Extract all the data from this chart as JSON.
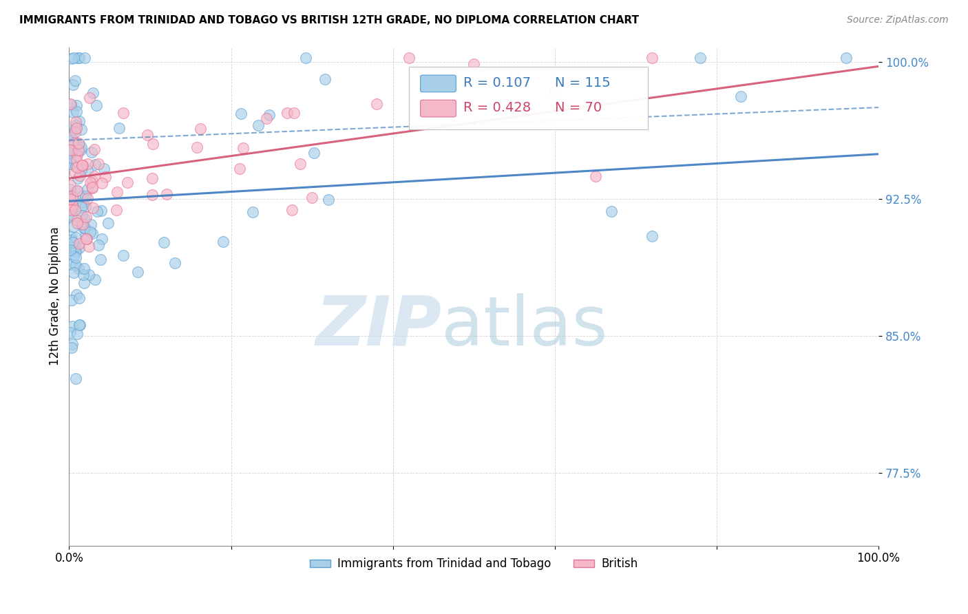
{
  "title": "IMMIGRANTS FROM TRINIDAD AND TOBAGO VS BRITISH 12TH GRADE, NO DIPLOMA CORRELATION CHART",
  "source": "Source: ZipAtlas.com",
  "ylabel": "12th Grade, No Diploma",
  "xlim": [
    0.0,
    1.0
  ],
  "ylim": [
    0.735,
    1.008
  ],
  "yticks": [
    0.775,
    0.85,
    0.925,
    1.0
  ],
  "ytick_labels": [
    "77.5%",
    "85.0%",
    "92.5%",
    "100.0%"
  ],
  "xticks": [
    0.0,
    0.2,
    0.4,
    0.6,
    0.8,
    1.0
  ],
  "xtick_labels": [
    "0.0%",
    "",
    "",
    "",
    "",
    "100.0%"
  ],
  "blue_color": "#a8cfe8",
  "pink_color": "#f4b8c8",
  "blue_edge_color": "#5a9fd4",
  "pink_edge_color": "#e87090",
  "blue_line_color": "#3a7abf",
  "pink_line_color": "#d45070",
  "ytick_color": "#4488cc",
  "legend_blue_color": "#3a7abf",
  "legend_pink_color": "#cc4466",
  "watermark_zip_color": "#ccdff0",
  "watermark_atlas_color": "#aaccdd",
  "blue_r": "R = 0.107",
  "blue_n": "N = 115",
  "pink_r": "R = 0.428",
  "pink_n": "N = 70",
  "blue_label": "Immigrants from Trinidad and Tobago",
  "pink_label": "British",
  "seed": 12345
}
